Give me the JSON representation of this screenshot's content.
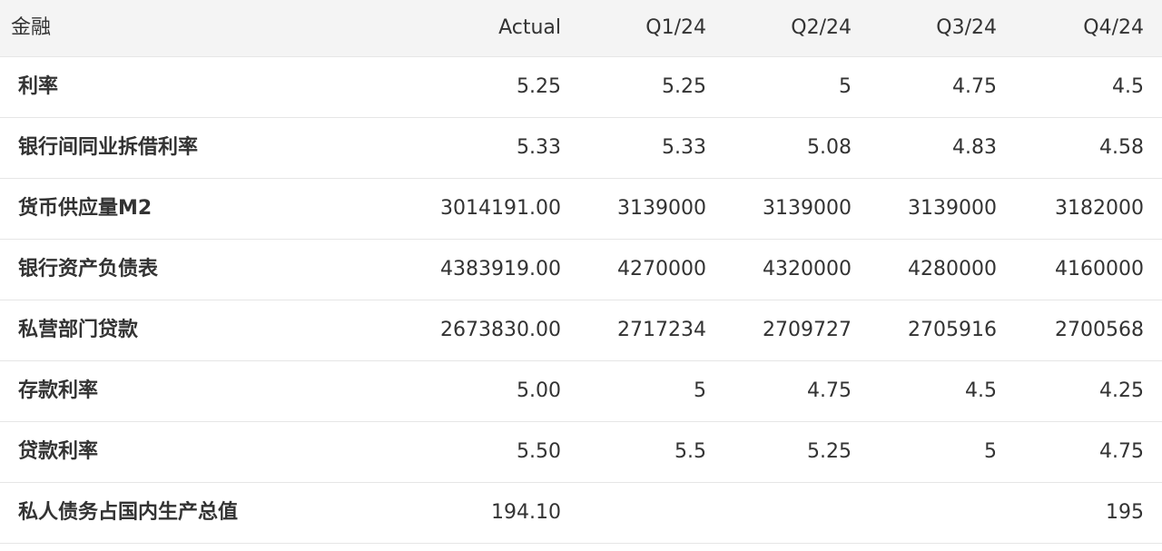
{
  "header": {
    "category": "金融",
    "columns": [
      "Actual",
      "Q1/24",
      "Q2/24",
      "Q3/24",
      "Q4/24"
    ]
  },
  "rows": [
    {
      "label": "利率",
      "values": [
        "5.25",
        "5.25",
        "5",
        "4.75",
        "4.5"
      ]
    },
    {
      "label": "银行间同业拆借利率",
      "values": [
        "5.33",
        "5.33",
        "5.08",
        "4.83",
        "4.58"
      ]
    },
    {
      "label": "货币供应量M2",
      "values": [
        "3014191.00",
        "3139000",
        "3139000",
        "3139000",
        "3182000"
      ]
    },
    {
      "label": "银行资产负债表",
      "values": [
        "4383919.00",
        "4270000",
        "4320000",
        "4280000",
        "4160000"
      ]
    },
    {
      "label": "私营部门贷款",
      "values": [
        "2673830.00",
        "2717234",
        "2709727",
        "2705916",
        "2700568"
      ]
    },
    {
      "label": "存款利率",
      "values": [
        "5.00",
        "5",
        "4.75",
        "4.5",
        "4.25"
      ]
    },
    {
      "label": "贷款利率",
      "values": [
        "5.50",
        "5.5",
        "5.25",
        "5",
        "4.75"
      ]
    },
    {
      "label": "私人债务占国内生产总值",
      "values": [
        "194.10",
        "",
        "",
        "",
        "195"
      ]
    }
  ]
}
